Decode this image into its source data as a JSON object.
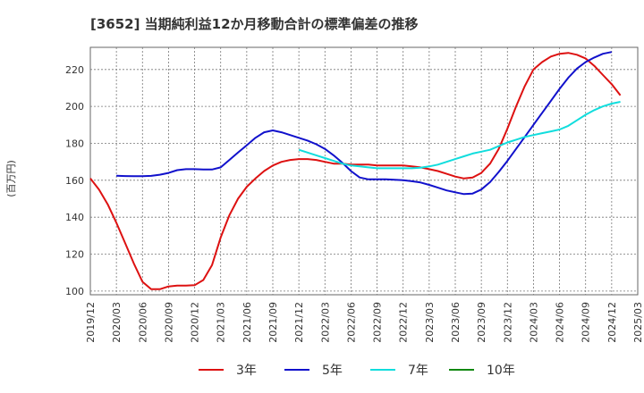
{
  "chart_data": {
    "type": "line",
    "title": "[3652]  当期純利益12か月移動合計の標準偏差の推移",
    "ylabel": "(百万円)",
    "xlabel": "",
    "ylim": [
      98,
      232
    ],
    "yticks": [
      100,
      120,
      140,
      160,
      180,
      200,
      220
    ],
    "xticks": [
      "2019/12",
      "2020/03",
      "2020/06",
      "2020/09",
      "2020/12",
      "2021/03",
      "2021/06",
      "2021/09",
      "2021/12",
      "2022/03",
      "2022/06",
      "2022/09",
      "2022/12",
      "2023/03",
      "2023/06",
      "2023/09",
      "2023/12",
      "2024/03",
      "2024/06",
      "2024/09",
      "2024/12",
      "2025/03"
    ],
    "grid": true,
    "legend_position": "bottom",
    "series": [
      {
        "name": "3年",
        "color": "#dd1111",
        "start": "2019/12",
        "values": [
          161,
          155,
          147,
          137,
          126,
          115,
          105,
          101,
          101,
          102.5,
          103,
          103,
          103.2,
          106,
          114,
          129,
          141,
          150,
          156.5,
          161,
          165,
          168,
          170,
          171,
          171.5,
          171.5,
          171,
          170,
          169,
          169,
          168.5,
          168.5,
          168.5,
          168,
          168,
          168,
          168,
          167.5,
          167,
          166,
          165,
          163.5,
          162,
          161,
          161.5,
          164,
          169,
          177,
          188,
          200,
          211,
          220,
          224,
          227,
          228.5,
          229,
          228,
          226,
          222,
          217,
          212,
          206
        ]
      },
      {
        "name": "5年",
        "color": "#1111cc",
        "start": "2020/03",
        "values": [
          162.5,
          162.3,
          162.2,
          162.2,
          162.4,
          163,
          164,
          165.5,
          166,
          166,
          165.8,
          165.8,
          167,
          171,
          175,
          179,
          183,
          186,
          187,
          186,
          184.5,
          183,
          181.5,
          179.5,
          177,
          173.5,
          169.5,
          165,
          161.5,
          160.5,
          160.5,
          160.5,
          160.3,
          160,
          159.5,
          158.8,
          157.5,
          156,
          154.5,
          153.5,
          152.5,
          152.8,
          155,
          159,
          164.5,
          170.5,
          177,
          183.5,
          190,
          196.5,
          203,
          209.5,
          215.5,
          220.5,
          224,
          226.5,
          228.5,
          229.5
        ]
      },
      {
        "name": "7年",
        "color": "#11dddd",
        "start": "2021/12",
        "values": [
          176.5,
          175,
          173.5,
          172,
          170.5,
          169,
          168,
          167.5,
          167,
          166.5,
          166.5,
          166.5,
          166.5,
          166.5,
          166.8,
          167.5,
          168.5,
          170,
          171.5,
          173,
          174.5,
          175.5,
          176.5,
          178.5,
          180.5,
          182,
          183.5,
          184.5,
          185.5,
          186.5,
          187.5,
          189.5,
          192.5,
          195.5,
          198,
          200,
          201.5,
          202.5
        ]
      },
      {
        "name": "10年",
        "color": "#118811",
        "start": "",
        "values": []
      }
    ]
  }
}
